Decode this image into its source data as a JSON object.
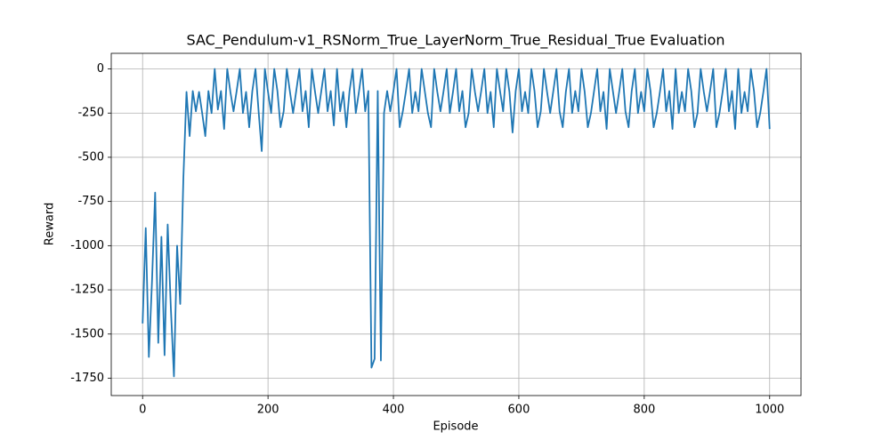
{
  "chart_data": {
    "type": "line",
    "title": "SAC_Pendulum-v1_RSNorm_True_LayerNorm_True_Residual_True Evaluation",
    "xlabel": "Episode",
    "ylabel": "Reward",
    "x": [
      0,
      5,
      10,
      15,
      20,
      25,
      30,
      35,
      40,
      45,
      50,
      55,
      60,
      65,
      70,
      75,
      80,
      85,
      90,
      95,
      100,
      105,
      110,
      115,
      120,
      125,
      130,
      135,
      140,
      145,
      150,
      155,
      160,
      165,
      170,
      175,
      180,
      185,
      190,
      195,
      200,
      205,
      210,
      215,
      220,
      225,
      230,
      235,
      240,
      245,
      250,
      255,
      260,
      265,
      270,
      275,
      280,
      285,
      290,
      295,
      300,
      305,
      310,
      315,
      320,
      325,
      330,
      335,
      340,
      345,
      350,
      355,
      360,
      365,
      370,
      375,
      380,
      385,
      390,
      395,
      400,
      405,
      410,
      415,
      420,
      425,
      430,
      435,
      440,
      445,
      450,
      455,
      460,
      465,
      470,
      475,
      480,
      485,
      490,
      495,
      500,
      505,
      510,
      515,
      520,
      525,
      530,
      535,
      540,
      545,
      550,
      555,
      560,
      565,
      570,
      575,
      580,
      585,
      590,
      595,
      600,
      605,
      610,
      615,
      620,
      625,
      630,
      635,
      640,
      645,
      650,
      655,
      660,
      665,
      670,
      675,
      680,
      685,
      690,
      695,
      700,
      705,
      710,
      715,
      720,
      725,
      730,
      735,
      740,
      745,
      750,
      755,
      760,
      765,
      770,
      775,
      780,
      785,
      790,
      795,
      800,
      805,
      810,
      815,
      820,
      825,
      830,
      835,
      840,
      845,
      850,
      855,
      860,
      865,
      870,
      875,
      880,
      885,
      890,
      895,
      900,
      905,
      910,
      915,
      920,
      925,
      930,
      935,
      940,
      945,
      950,
      955,
      960,
      965,
      970,
      975,
      980,
      985,
      990,
      995,
      1000
    ],
    "series": [
      {
        "name": "Reward",
        "color": "#1f77b4",
        "values": [
          -1440,
          -900,
          -1630,
          -1200,
          -700,
          -1550,
          -950,
          -1620,
          -880,
          -1350,
          -1740,
          -1000,
          -1330,
          -620,
          -130,
          -380,
          -125,
          -240,
          -130,
          -250,
          -380,
          -125,
          -250,
          0,
          -230,
          -125,
          -340,
          0,
          -130,
          -240,
          -125,
          0,
          -250,
          -130,
          -330,
          -125,
          0,
          -240,
          -465,
          0,
          -130,
          -250,
          0,
          -125,
          -330,
          -240,
          0,
          -130,
          -250,
          -125,
          0,
          -240,
          -125,
          -330,
          0,
          -130,
          -250,
          -125,
          0,
          -240,
          -125,
          -320,
          0,
          -240,
          -130,
          -330,
          -125,
          0,
          -250,
          -130,
          0,
          -240,
          -125,
          -1690,
          -1640,
          -125,
          -1650,
          -250,
          -125,
          -240,
          -125,
          0,
          -330,
          -240,
          -125,
          0,
          -250,
          -130,
          -240,
          0,
          -125,
          -250,
          -330,
          0,
          -130,
          -240,
          -125,
          0,
          -250,
          -130,
          0,
          -240,
          -125,
          -330,
          -250,
          0,
          -130,
          -240,
          -125,
          0,
          -250,
          -130,
          -330,
          0,
          -125,
          -240,
          0,
          -130,
          -360,
          -125,
          0,
          -240,
          -130,
          -250,
          0,
          -125,
          -330,
          -240,
          0,
          -130,
          -250,
          -125,
          0,
          -240,
          -330,
          -130,
          0,
          -250,
          -125,
          -240,
          0,
          -130,
          -330,
          -250,
          -125,
          0,
          -240,
          -130,
          -340,
          0,
          -125,
          -250,
          -130,
          0,
          -240,
          -330,
          -125,
          0,
          -250,
          -130,
          -240,
          0,
          -125,
          -330,
          -250,
          -130,
          0,
          -240,
          -125,
          -340,
          0,
          -250,
          -130,
          -240,
          0,
          -125,
          -330,
          -250,
          0,
          -130,
          -240,
          -125,
          0,
          -330,
          -250,
          -130,
          0,
          -240,
          -125,
          -340,
          0,
          -250,
          -130,
          -240,
          0,
          -125,
          -330,
          -250,
          -130,
          0,
          -340
        ]
      }
    ],
    "xlim": [
      -50,
      1050
    ],
    "ylim": [
      -1848,
      88
    ],
    "xticks": [
      0,
      200,
      400,
      600,
      800,
      1000
    ],
    "yticks": [
      0,
      -250,
      -500,
      -750,
      -1000,
      -1250,
      -1500,
      -1750
    ],
    "grid": true
  }
}
